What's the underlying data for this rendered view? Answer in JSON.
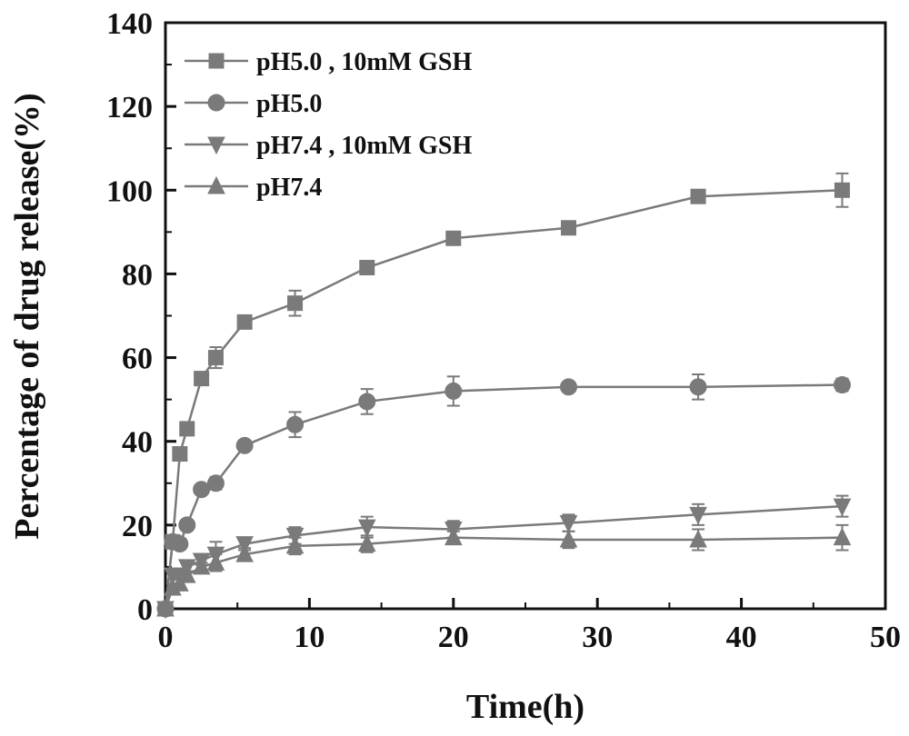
{
  "chart_data": {
    "type": "line",
    "xlabel": "Time(h)",
    "ylabel": "Percentage of drug release(%)",
    "xlim": [
      0,
      50
    ],
    "ylim": [
      0,
      140
    ],
    "x_ticks": [
      "0",
      "10",
      "20",
      "30",
      "40",
      "50"
    ],
    "y_ticks": [
      "0",
      "20",
      "40",
      "60",
      "80",
      "100",
      "120",
      "140"
    ],
    "grid": false,
    "legend_position": "top-left",
    "color": "#7a7a7a",
    "series": [
      {
        "name": "pH5.0 , 10mM GSH",
        "marker": "square",
        "points": [
          {
            "x": 0,
            "y": 0,
            "err": 0
          },
          {
            "x": 0.5,
            "y": 16,
            "err": 1
          },
          {
            "x": 1,
            "y": 37,
            "err": 1
          },
          {
            "x": 1.5,
            "y": 43,
            "err": 1
          },
          {
            "x": 2.5,
            "y": 55,
            "err": 1
          },
          {
            "x": 3.5,
            "y": 60,
            "err": 2.5
          },
          {
            "x": 5.5,
            "y": 68.5,
            "err": 1.5
          },
          {
            "x": 9,
            "y": 73,
            "err": 3
          },
          {
            "x": 14,
            "y": 81.5,
            "err": 1.5
          },
          {
            "x": 20,
            "y": 88.5,
            "err": 1
          },
          {
            "x": 28,
            "y": 91,
            "err": 1
          },
          {
            "x": 37,
            "y": 98.5,
            "err": 1
          },
          {
            "x": 47,
            "y": 100,
            "err": 4
          }
        ]
      },
      {
        "name": "pH5.0",
        "marker": "circle",
        "points": [
          {
            "x": 0,
            "y": 0,
            "err": 0
          },
          {
            "x": 0.5,
            "y": 16,
            "err": 1
          },
          {
            "x": 1,
            "y": 15.5,
            "err": 1
          },
          {
            "x": 1.5,
            "y": 20,
            "err": 1
          },
          {
            "x": 2.5,
            "y": 28.5,
            "err": 1
          },
          {
            "x": 3.5,
            "y": 30,
            "err": 1.5
          },
          {
            "x": 5.5,
            "y": 39,
            "err": 1
          },
          {
            "x": 9,
            "y": 44,
            "err": 3
          },
          {
            "x": 14,
            "y": 49.5,
            "err": 3
          },
          {
            "x": 20,
            "y": 52,
            "err": 3.5
          },
          {
            "x": 28,
            "y": 53,
            "err": 1
          },
          {
            "x": 37,
            "y": 53,
            "err": 3
          },
          {
            "x": 47,
            "y": 53.5,
            "err": 1.5
          }
        ]
      },
      {
        "name": "pH7.4 , 10mM GSH",
        "marker": "triangle-down",
        "points": [
          {
            "x": 0,
            "y": 0,
            "err": 0
          },
          {
            "x": 0.5,
            "y": 8,
            "err": 1
          },
          {
            "x": 1,
            "y": 8,
            "err": 1
          },
          {
            "x": 1.5,
            "y": 10,
            "err": 1
          },
          {
            "x": 2.5,
            "y": 11.5,
            "err": 1
          },
          {
            "x": 3.5,
            "y": 13,
            "err": 3
          },
          {
            "x": 5.5,
            "y": 15.5,
            "err": 1.5
          },
          {
            "x": 9,
            "y": 17.5,
            "err": 2
          },
          {
            "x": 14,
            "y": 19.5,
            "err": 2.5
          },
          {
            "x": 20,
            "y": 19,
            "err": 2
          },
          {
            "x": 28,
            "y": 20.5,
            "err": 2
          },
          {
            "x": 37,
            "y": 22.5,
            "err": 2.5
          },
          {
            "x": 47,
            "y": 24.5,
            "err": 2.5
          }
        ]
      },
      {
        "name": "pH7.4",
        "marker": "triangle-up",
        "points": [
          {
            "x": 0,
            "y": 0,
            "err": 0
          },
          {
            "x": 0.5,
            "y": 5,
            "err": 1
          },
          {
            "x": 1,
            "y": 6,
            "err": 1
          },
          {
            "x": 1.5,
            "y": 8,
            "err": 1
          },
          {
            "x": 2.5,
            "y": 10,
            "err": 1
          },
          {
            "x": 3.5,
            "y": 11,
            "err": 2
          },
          {
            "x": 5.5,
            "y": 13,
            "err": 1.5
          },
          {
            "x": 9,
            "y": 15,
            "err": 2
          },
          {
            "x": 14,
            "y": 15.5,
            "err": 2
          },
          {
            "x": 20,
            "y": 17,
            "err": 1.5
          },
          {
            "x": 28,
            "y": 16.5,
            "err": 2
          },
          {
            "x": 37,
            "y": 16.5,
            "err": 2.5
          },
          {
            "x": 47,
            "y": 17,
            "err": 3
          }
        ]
      }
    ]
  }
}
